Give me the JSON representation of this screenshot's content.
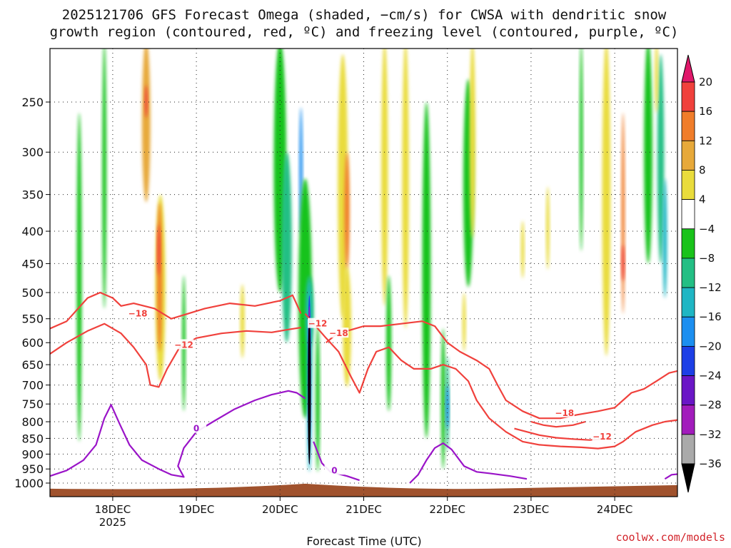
{
  "title": {
    "line1": "2025121706 GFS Forecast Omega (shaded, −cm/s) for CWSA with dendritic snow",
    "line2": "growth region (contoured, red, ºC) and freezing level (contoured, purple, ºC)"
  },
  "credit": "coolwx.com/models",
  "chart_data": {
    "type": "heatmap",
    "title": "2025121706 GFS Forecast Omega (shaded, −cm/s) for CWSA with dendritic snow growth region (contoured, red, ºC) and freezing level (contoured, purple, ºC)",
    "xlabel": "Forecast Time (UTC)",
    "ylabel": "",
    "x_range_days": [
      17.25,
      24.75
    ],
    "y_range_hpa": [
      200,
      1025
    ],
    "x_ticks": [
      {
        "day": 18,
        "label": "18DEC",
        "sublabel": "2025"
      },
      {
        "day": 19,
        "label": "19DEC",
        "sublabel": ""
      },
      {
        "day": 20,
        "label": "20DEC",
        "sublabel": ""
      },
      {
        "day": 21,
        "label": "21DEC",
        "sublabel": ""
      },
      {
        "day": 22,
        "label": "22DEC",
        "sublabel": ""
      },
      {
        "day": 23,
        "label": "23DEC",
        "sublabel": ""
      },
      {
        "day": 24,
        "label": "24DEC",
        "sublabel": ""
      }
    ],
    "y_ticks": [
      "250",
      "300",
      "350",
      "400",
      "450",
      "500",
      "550",
      "600",
      "650",
      "700",
      "750",
      "800",
      "850",
      "900",
      "950",
      "1000"
    ],
    "grid": true,
    "colorbar": {
      "labels": [
        "20",
        "16",
        "12",
        "8",
        "4",
        "−4",
        "−8",
        "−12",
        "−16",
        "−20",
        "−24",
        "−28",
        "−32",
        "−36"
      ],
      "bands": [
        {
          "from": 20,
          "to": 24,
          "color": "#e0186a"
        },
        {
          "from": 16,
          "to": 20,
          "color": "#f0413c"
        },
        {
          "from": 12,
          "to": 16,
          "color": "#f07d2a"
        },
        {
          "from": 8,
          "to": 12,
          "color": "#e7a93a"
        },
        {
          "from": 4,
          "to": 8,
          "color": "#e9dc3c"
        },
        {
          "from": -4,
          "to": 4,
          "color": "#ffffff"
        },
        {
          "from": -8,
          "to": -4,
          "color": "#19c31a"
        },
        {
          "from": -12,
          "to": -8,
          "color": "#23bf84"
        },
        {
          "from": -16,
          "to": -12,
          "color": "#1fb6c4"
        },
        {
          "from": -20,
          "to": -16,
          "color": "#1c8ff0"
        },
        {
          "from": -24,
          "to": -20,
          "color": "#1d3fe6"
        },
        {
          "from": -28,
          "to": -24,
          "color": "#6a16c6"
        },
        {
          "from": -32,
          "to": -28,
          "color": "#a21cbc"
        },
        {
          "from": -36,
          "to": -32,
          "color": "#aaaaaa"
        },
        {
          "from": -40,
          "to": -36,
          "color": "#000000"
        }
      ]
    },
    "omega_features": [
      {
        "day": 17.6,
        "p": 560,
        "w": 0.06,
        "h": 600,
        "value": -6
      },
      {
        "day": 17.9,
        "p": 350,
        "w": 0.05,
        "h": 360,
        "value": -6
      },
      {
        "day": 18.4,
        "p": 270,
        "w": 0.1,
        "h": 180,
        "value": 10
      },
      {
        "day": 18.4,
        "p": 250,
        "w": 0.03,
        "h": 30,
        "value": 18
      },
      {
        "day": 18.57,
        "p": 520,
        "w": 0.12,
        "h": 340,
        "value": 6
      },
      {
        "day": 18.56,
        "p": 490,
        "w": 0.06,
        "h": 260,
        "value": 12
      },
      {
        "day": 18.55,
        "p": 430,
        "w": 0.03,
        "h": 80,
        "value": 19
      },
      {
        "day": 18.85,
        "p": 620,
        "w": 0.04,
        "h": 300,
        "value": -6
      },
      {
        "day": 19.55,
        "p": 560,
        "w": 0.05,
        "h": 150,
        "value": 6
      },
      {
        "day": 20.0,
        "p": 310,
        "w": 0.15,
        "h": 380,
        "value": -6
      },
      {
        "day": 20.08,
        "p": 450,
        "w": 0.12,
        "h": 300,
        "value": -10
      },
      {
        "day": 20.25,
        "p": 330,
        "w": 0.04,
        "h": 150,
        "value": -18
      },
      {
        "day": 20.3,
        "p": 560,
        "w": 0.16,
        "h": 460,
        "value": -6
      },
      {
        "day": 20.35,
        "p": 540,
        "w": 0.1,
        "h": 140,
        "value": -12
      },
      {
        "day": 20.35,
        "p": 720,
        "w": 0.06,
        "h": 480,
        "value": -16
      },
      {
        "day": 20.35,
        "p": 720,
        "w": 0.04,
        "h": 430,
        "value": -22
      },
      {
        "day": 20.35,
        "p": 730,
        "w": 0.025,
        "h": 410,
        "value": -30
      },
      {
        "day": 20.35,
        "p": 740,
        "w": 0.016,
        "h": 390,
        "value": -40
      },
      {
        "day": 20.45,
        "p": 760,
        "w": 0.05,
        "h": 400,
        "value": -8
      },
      {
        "day": 20.75,
        "p": 380,
        "w": 0.12,
        "h": 340,
        "value": 6
      },
      {
        "day": 20.8,
        "p": 380,
        "w": 0.06,
        "h": 160,
        "value": 12
      },
      {
        "day": 20.8,
        "p": 580,
        "w": 0.1,
        "h": 250,
        "value": 6
      },
      {
        "day": 21.25,
        "p": 350,
        "w": 0.08,
        "h": 350,
        "value": 5
      },
      {
        "day": 21.3,
        "p": 620,
        "w": 0.06,
        "h": 300,
        "value": -6
      },
      {
        "day": 21.5,
        "p": 380,
        "w": 0.08,
        "h": 380,
        "value": 5
      },
      {
        "day": 21.75,
        "p": 550,
        "w": 0.1,
        "h": 600,
        "value": -6
      },
      {
        "day": 21.95,
        "p": 760,
        "w": 0.05,
        "h": 380,
        "value": -6
      },
      {
        "day": 22.0,
        "p": 760,
        "w": 0.04,
        "h": 260,
        "value": -12
      },
      {
        "day": 22.0,
        "p": 760,
        "w": 0.02,
        "h": 120,
        "value": -18
      },
      {
        "day": 22.25,
        "p": 360,
        "w": 0.12,
        "h": 260,
        "value": -6
      },
      {
        "day": 22.3,
        "p": 300,
        "w": 0.07,
        "h": 220,
        "value": 5
      },
      {
        "day": 22.2,
        "p": 560,
        "w": 0.04,
        "h": 120,
        "value": 6
      },
      {
        "day": 22.9,
        "p": 430,
        "w": 0.04,
        "h": 90,
        "value": 5
      },
      {
        "day": 23.2,
        "p": 400,
        "w": 0.04,
        "h": 120,
        "value": 5
      },
      {
        "day": 23.6,
        "p": 300,
        "w": 0.04,
        "h": 260,
        "value": -5
      },
      {
        "day": 23.9,
        "p": 410,
        "w": 0.1,
        "h": 440,
        "value": 6
      },
      {
        "day": 24.1,
        "p": 400,
        "w": 0.04,
        "h": 280,
        "value": 12
      },
      {
        "day": 24.1,
        "p": 450,
        "w": 0.02,
        "h": 60,
        "value": 19
      },
      {
        "day": 24.4,
        "p": 300,
        "w": 0.1,
        "h": 300,
        "value": -6
      },
      {
        "day": 24.55,
        "p": 330,
        "w": 0.08,
        "h": 240,
        "value": -10
      },
      {
        "day": 24.6,
        "p": 420,
        "w": 0.05,
        "h": 180,
        "value": -14
      },
      {
        "day": 24.5,
        "p": 220,
        "w": 0.04,
        "h": 80,
        "value": 5
      }
    ],
    "dgz_contours": [
      {
        "label": "−18",
        "label_at": {
          "day": 18.3,
          "p": 540
        },
        "points": [
          [
            17.25,
            570
          ],
          [
            17.45,
            555
          ],
          [
            17.7,
            510
          ],
          [
            17.85,
            500
          ],
          [
            18.0,
            510
          ],
          [
            18.1,
            525
          ],
          [
            18.25,
            520
          ],
          [
            18.5,
            530
          ],
          [
            18.7,
            550
          ],
          [
            18.9,
            540
          ],
          [
            19.1,
            530
          ],
          [
            19.4,
            520
          ],
          [
            19.7,
            525
          ],
          [
            20.0,
            515
          ],
          [
            20.15,
            505
          ],
          [
            20.25,
            540
          ]
        ]
      },
      {
        "label": "−12",
        "label_at": {
          "day": 18.85,
          "p": 605
        },
        "points": [
          [
            17.25,
            625
          ],
          [
            17.45,
            600
          ],
          [
            17.7,
            575
          ],
          [
            17.9,
            560
          ],
          [
            18.1,
            580
          ],
          [
            18.25,
            610
          ],
          [
            18.4,
            650
          ],
          [
            18.45,
            700
          ],
          [
            18.55,
            705
          ],
          [
            18.65,
            660
          ],
          [
            18.8,
            610
          ],
          [
            19.0,
            590
          ],
          [
            19.3,
            580
          ],
          [
            19.6,
            575
          ],
          [
            19.9,
            578
          ],
          [
            20.1,
            572
          ],
          [
            20.25,
            568
          ]
        ]
      },
      {
        "label": "−18",
        "label_at": {
          "day": 20.7,
          "p": 580
        },
        "points": [
          [
            20.55,
            600
          ],
          [
            20.65,
            585
          ],
          [
            20.8,
            575
          ],
          [
            21.0,
            565
          ],
          [
            21.2,
            565
          ],
          [
            21.45,
            560
          ],
          [
            21.7,
            555
          ],
          [
            21.85,
            565
          ],
          [
            22.0,
            600
          ],
          [
            22.15,
            620
          ],
          [
            22.35,
            640
          ],
          [
            22.5,
            660
          ],
          [
            22.6,
            700
          ],
          [
            22.7,
            740
          ],
          [
            22.9,
            770
          ],
          [
            23.1,
            790
          ],
          [
            23.35,
            790
          ],
          [
            23.55,
            780
          ],
          [
            23.8,
            770
          ],
          [
            24.0,
            760
          ],
          [
            24.2,
            720
          ],
          [
            24.35,
            710
          ],
          [
            24.5,
            690
          ],
          [
            24.65,
            670
          ],
          [
            24.75,
            665
          ]
        ]
      },
      {
        "label": "−12",
        "label_at": {
          "day": 20.45,
          "p": 560
        },
        "points": [
          [
            20.3,
            540
          ],
          [
            20.4,
            560
          ],
          [
            20.55,
            590
          ],
          [
            20.7,
            620
          ],
          [
            20.85,
            680
          ],
          [
            20.95,
            720
          ],
          [
            21.05,
            660
          ],
          [
            21.15,
            620
          ],
          [
            21.3,
            610
          ],
          [
            21.45,
            640
          ],
          [
            21.6,
            660
          ],
          [
            21.8,
            660
          ],
          [
            21.95,
            650
          ],
          [
            22.1,
            660
          ],
          [
            22.25,
            690
          ],
          [
            22.35,
            740
          ],
          [
            22.5,
            790
          ],
          [
            22.7,
            830
          ],
          [
            22.9,
            860
          ],
          [
            23.1,
            870
          ],
          [
            23.35,
            875
          ],
          [
            23.6,
            878
          ],
          [
            23.8,
            882
          ],
          [
            24.0,
            875
          ],
          [
            24.1,
            860
          ],
          [
            24.25,
            830
          ],
          [
            24.45,
            810
          ],
          [
            24.6,
            800
          ],
          [
            24.75,
            795
          ]
        ]
      },
      {
        "label": "−18",
        "label_at": {
          "day": 23.4,
          "p": 775
        },
        "points": [
          [
            23.0,
            800
          ],
          [
            23.15,
            810
          ],
          [
            23.3,
            815
          ],
          [
            23.5,
            810
          ],
          [
            23.65,
            800
          ]
        ]
      },
      {
        "label": "−12",
        "label_at": {
          "day": 23.85,
          "p": 845
        },
        "points": [
          [
            22.8,
            820
          ],
          [
            22.95,
            830
          ],
          [
            23.1,
            840
          ],
          [
            23.3,
            848
          ],
          [
            23.5,
            852
          ],
          [
            23.7,
            855
          ],
          [
            23.85,
            852
          ]
        ]
      }
    ],
    "freezing_contours": [
      {
        "label": "0",
        "label_at": {
          "day": 19.0,
          "p": 820
        },
        "points": [
          [
            17.25,
            975
          ],
          [
            17.45,
            955
          ],
          [
            17.65,
            920
          ],
          [
            17.8,
            870
          ],
          [
            17.9,
            790
          ],
          [
            17.98,
            752
          ],
          [
            18.08,
            805
          ],
          [
            18.2,
            870
          ],
          [
            18.35,
            920
          ],
          [
            18.55,
            950
          ],
          [
            18.7,
            970
          ],
          [
            18.85,
            978
          ],
          [
            18.78,
            940
          ],
          [
            18.85,
            880
          ],
          [
            19.0,
            830
          ],
          [
            19.2,
            800
          ],
          [
            19.45,
            765
          ],
          [
            19.7,
            740
          ],
          [
            19.9,
            725
          ],
          [
            20.1,
            715
          ],
          [
            20.2,
            720
          ],
          [
            20.3,
            735
          ]
        ]
      },
      {
        "label": "0",
        "label_at": {
          "day": 20.65,
          "p": 955
        },
        "points": [
          [
            20.4,
            860
          ],
          [
            20.5,
            930
          ],
          [
            20.6,
            960
          ],
          [
            20.8,
            975
          ],
          [
            20.95,
            990
          ]
        ]
      },
      {
        "label": "",
        "label_at": null,
        "points": [
          [
            21.55,
            1000
          ],
          [
            21.65,
            970
          ],
          [
            21.75,
            920
          ],
          [
            21.85,
            880
          ],
          [
            21.95,
            865
          ],
          [
            22.05,
            885
          ],
          [
            22.2,
            940
          ],
          [
            22.35,
            960
          ],
          [
            22.5,
            965
          ],
          [
            22.75,
            975
          ],
          [
            22.95,
            985
          ]
        ]
      },
      {
        "label": "",
        "label_at": null,
        "points": [
          [
            24.6,
            985
          ],
          [
            24.68,
            970
          ],
          [
            24.75,
            968
          ]
        ]
      }
    ],
    "terrain_top_hpa": 1010
  }
}
